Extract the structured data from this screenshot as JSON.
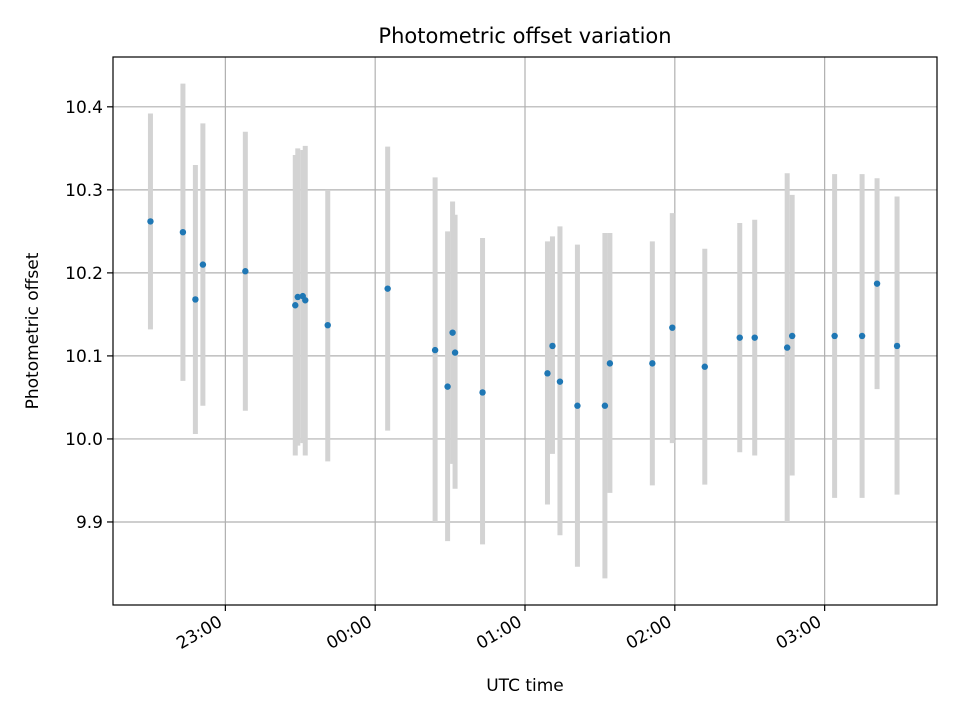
{
  "chart_data": {
    "type": "scatter",
    "title": "Photometric offset variation",
    "xlabel": "UTC time",
    "ylabel": "Photometric offset",
    "x_axis": "time",
    "xlim": [
      "22:15",
      "03:45"
    ],
    "ylim": [
      9.8,
      10.46
    ],
    "xticks": [
      "23:00",
      "00:00",
      "01:00",
      "02:00",
      "03:00"
    ],
    "yticks": [
      9.9,
      10.0,
      10.1,
      10.2,
      10.3,
      10.4
    ],
    "grid": true,
    "colors": {
      "point": "#1f77b4",
      "errorbar": "#d3d3d3",
      "grid": "#b0b0b0"
    },
    "series": [
      {
        "points": [
          {
            "x": "22:30",
            "y": 10.262,
            "lo": 10.132,
            "hi": 10.392
          },
          {
            "x": "22:43",
            "y": 10.249,
            "lo": 10.07,
            "hi": 10.428
          },
          {
            "x": "22:48",
            "y": 10.168,
            "lo": 10.006,
            "hi": 10.33
          },
          {
            "x": "22:51",
            "y": 10.21,
            "lo": 10.04,
            "hi": 10.38
          },
          {
            "x": "23:08",
            "y": 10.202,
            "lo": 10.034,
            "hi": 10.37
          },
          {
            "x": "23:28",
            "y": 10.161,
            "lo": 9.98,
            "hi": 10.342
          },
          {
            "x": "23:29",
            "y": 10.171,
            "lo": 9.992,
            "hi": 10.35
          },
          {
            "x": "23:31",
            "y": 10.172,
            "lo": 9.995,
            "hi": 10.348
          },
          {
            "x": "23:32",
            "y": 10.167,
            "lo": 9.98,
            "hi": 10.353
          },
          {
            "x": "23:41",
            "y": 10.137,
            "lo": 9.973,
            "hi": 10.3
          },
          {
            "x": "00:05",
            "y": 10.181,
            "lo": 10.01,
            "hi": 10.352
          },
          {
            "x": "00:24",
            "y": 10.107,
            "lo": 9.9,
            "hi": 10.315
          },
          {
            "x": "00:29",
            "y": 10.063,
            "lo": 9.877,
            "hi": 10.25
          },
          {
            "x": "00:31",
            "y": 10.128,
            "lo": 9.97,
            "hi": 10.286
          },
          {
            "x": "00:32",
            "y": 10.104,
            "lo": 9.94,
            "hi": 10.27
          },
          {
            "x": "00:43",
            "y": 10.056,
            "lo": 9.873,
            "hi": 10.242
          },
          {
            "x": "01:09",
            "y": 10.079,
            "lo": 9.921,
            "hi": 10.238
          },
          {
            "x": "01:11",
            "y": 10.112,
            "lo": 9.982,
            "hi": 10.244
          },
          {
            "x": "01:14",
            "y": 10.069,
            "lo": 9.884,
            "hi": 10.256
          },
          {
            "x": "01:21",
            "y": 10.04,
            "lo": 9.846,
            "hi": 10.234
          },
          {
            "x": "01:32",
            "y": 10.04,
            "lo": 9.832,
            "hi": 10.248
          },
          {
            "x": "01:34",
            "y": 10.091,
            "lo": 9.935,
            "hi": 10.248
          },
          {
            "x": "01:51",
            "y": 10.091,
            "lo": 9.944,
            "hi": 10.238
          },
          {
            "x": "01:59",
            "y": 10.134,
            "lo": 9.995,
            "hi": 10.272
          },
          {
            "x": "02:12",
            "y": 10.087,
            "lo": 9.945,
            "hi": 10.229
          },
          {
            "x": "02:26",
            "y": 10.122,
            "lo": 9.984,
            "hi": 10.26
          },
          {
            "x": "02:32",
            "y": 10.122,
            "lo": 9.98,
            "hi": 10.264
          },
          {
            "x": "02:45",
            "y": 10.11,
            "lo": 9.9,
            "hi": 10.32
          },
          {
            "x": "02:47",
            "y": 10.124,
            "lo": 9.956,
            "hi": 10.294
          },
          {
            "x": "03:04",
            "y": 10.124,
            "lo": 9.929,
            "hi": 10.319
          },
          {
            "x": "03:15",
            "y": 10.124,
            "lo": 9.929,
            "hi": 10.319
          },
          {
            "x": "03:21",
            "y": 10.187,
            "lo": 10.06,
            "hi": 10.314
          },
          {
            "x": "03:29",
            "y": 10.112,
            "lo": 9.933,
            "hi": 10.292
          }
        ]
      }
    ]
  }
}
